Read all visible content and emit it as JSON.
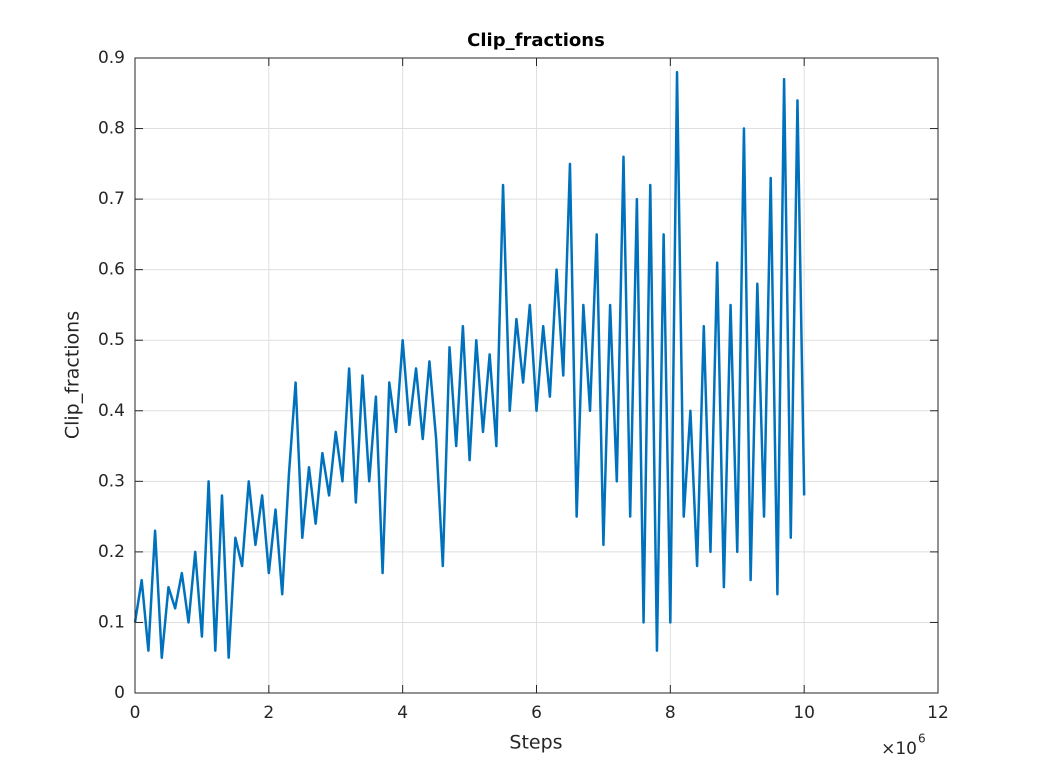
{
  "chart_data": {
    "type": "line",
    "title": "Clip_fractions",
    "x_label": "Steps",
    "y_label": "Clip_fractions",
    "x_multiplier": "×10",
    "x_multiplier_exponent": "6",
    "x": [
      0,
      100000,
      200000,
      300000,
      400000,
      500000,
      600000,
      700000,
      800000,
      900000,
      1000000,
      1100000,
      1200000,
      1300000,
      1400000,
      1500000,
      1600000,
      1700000,
      1800000,
      1900000,
      2000000,
      2100000,
      2200000,
      2300000,
      2400000,
      2500000,
      2600000,
      2700000,
      2800000,
      2900000,
      3000000,
      3100000,
      3200000,
      3300000,
      3400000,
      3500000,
      3600000,
      3700000,
      3800000,
      3900000,
      4000000,
      4100000,
      4200000,
      4300000,
      4400000,
      4500000,
      4600000,
      4700000,
      4800000,
      4900000,
      5000000,
      5100000,
      5200000,
      5300000,
      5400000,
      5500000,
      5600000,
      5700000,
      5800000,
      5900000,
      6000000,
      6100000,
      6200000,
      6300000,
      6400000,
      6500000,
      6600000,
      6700000,
      6800000,
      6900000,
      7000000,
      7100000,
      7200000,
      7300000,
      7400000,
      7500000,
      7600000,
      7700000,
      7800000,
      7900000,
      8000000,
      8100000,
      8200000,
      8300000,
      8400000,
      8500000,
      8600000,
      8700000,
      8800000,
      8900000,
      9000000,
      9100000,
      9200000,
      9300000,
      9400000,
      9500000,
      9600000,
      9700000,
      9800000,
      9900000,
      10000000
    ],
    "series": [
      {
        "name": "Clip_fractions",
        "color": "#0072bd",
        "values": [
          0.1,
          0.16,
          0.06,
          0.23,
          0.05,
          0.15,
          0.12,
          0.17,
          0.1,
          0.2,
          0.08,
          0.3,
          0.06,
          0.28,
          0.05,
          0.22,
          0.18,
          0.3,
          0.21,
          0.28,
          0.17,
          0.26,
          0.14,
          0.31,
          0.44,
          0.22,
          0.32,
          0.24,
          0.34,
          0.28,
          0.37,
          0.3,
          0.46,
          0.27,
          0.45,
          0.3,
          0.42,
          0.17,
          0.44,
          0.37,
          0.5,
          0.38,
          0.46,
          0.36,
          0.47,
          0.36,
          0.18,
          0.49,
          0.35,
          0.52,
          0.33,
          0.5,
          0.37,
          0.48,
          0.35,
          0.72,
          0.4,
          0.53,
          0.44,
          0.55,
          0.4,
          0.52,
          0.42,
          0.6,
          0.45,
          0.75,
          0.25,
          0.55,
          0.4,
          0.65,
          0.21,
          0.55,
          0.3,
          0.76,
          0.25,
          0.7,
          0.1,
          0.72,
          0.06,
          0.65,
          0.1,
          0.88,
          0.25,
          0.4,
          0.18,
          0.52,
          0.2,
          0.61,
          0.15,
          0.55,
          0.2,
          0.8,
          0.16,
          0.58,
          0.25,
          0.73,
          0.14,
          0.87,
          0.22,
          0.84,
          0.28
        ]
      }
    ],
    "xlim": [
      0,
      12000000
    ],
    "xticks": [
      {
        "value": 0,
        "label": "0"
      },
      {
        "value": 2000000,
        "label": "2"
      },
      {
        "value": 4000000,
        "label": "4"
      },
      {
        "value": 6000000,
        "label": "6"
      },
      {
        "value": 8000000,
        "label": "8"
      },
      {
        "value": 10000000,
        "label": "10"
      },
      {
        "value": 12000000,
        "label": "12"
      }
    ],
    "ylim": [
      0,
      0.9
    ],
    "yticks": [
      0,
      0.1,
      0.2,
      0.3,
      0.4,
      0.5,
      0.6,
      0.7,
      0.8,
      0.9
    ],
    "grid": true
  }
}
